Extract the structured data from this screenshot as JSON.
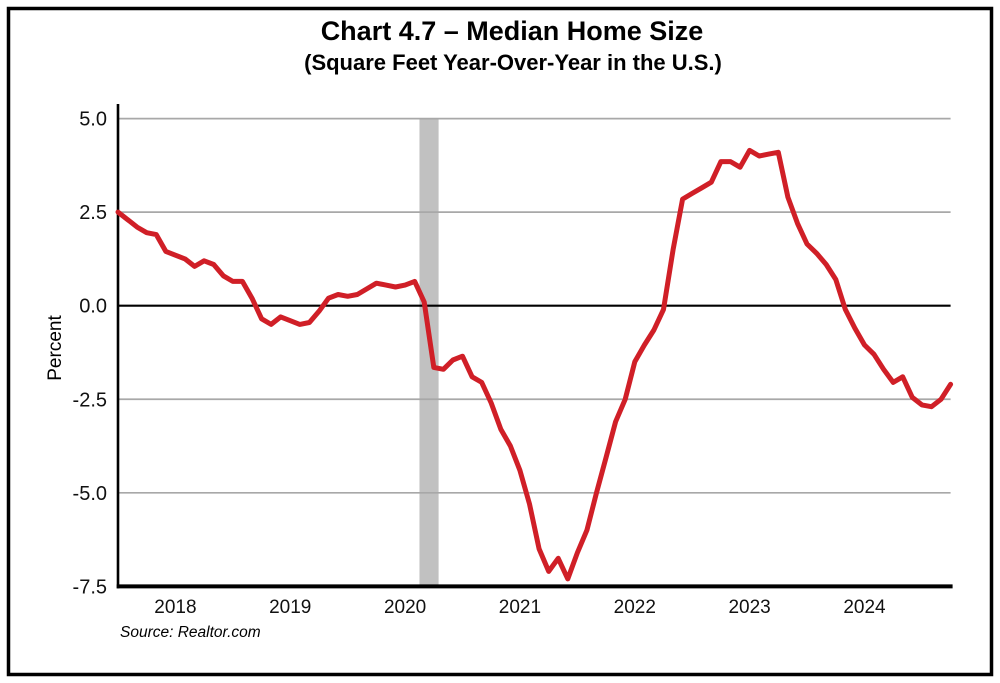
{
  "window": {
    "background_color": "#ffffff",
    "frame_color": "#000000"
  },
  "header": {
    "title": "Chart 4.7 – Median Home Size",
    "subtitle": "(Square Feet Year-Over-Year in the U.S.)"
  },
  "footer": {
    "source": "Source: Realtor.com"
  },
  "chart_data": {
    "type": "line",
    "title": "Chart 4.7 – Median Home Size",
    "subtitle": "(Square Feet Year-Over-Year in the U.S.)",
    "xlabel": "",
    "ylabel": "Percent",
    "source": "Source: Realtor.com",
    "frequency": "monthly",
    "start_month": "2017-07",
    "end_month": "2024-10",
    "ylim": [
      -7.5,
      5.0
    ],
    "y_ticks": [
      5.0,
      2.5,
      0.0,
      -2.5,
      -5.0,
      -7.5
    ],
    "y_tick_labels": [
      "5.0",
      "2.5",
      "0.0",
      "-2.5",
      "-5.0",
      "-7.5"
    ],
    "x_tick_labels": [
      "2018",
      "2019",
      "2020",
      "2021",
      "2022",
      "2023",
      "2024"
    ],
    "x_tick_alignment": "january-of-year",
    "grid": true,
    "legend": "none",
    "line_color": "#d01f27",
    "grid_color": "#a8a8a8",
    "zero_line_color": "#000000",
    "recession_band": {
      "from_month": "2020-02",
      "to_month": "2020-04",
      "color": "#c1c1c1"
    },
    "series": [
      {
        "name": "Median home size, square feet, year-over-year % change",
        "values": [
          2.5,
          2.3,
          2.1,
          1.95,
          1.9,
          1.45,
          1.35,
          1.25,
          1.05,
          1.2,
          1.1,
          0.8,
          0.65,
          0.65,
          0.2,
          -0.35,
          -0.5,
          -0.3,
          -0.4,
          -0.5,
          -0.45,
          -0.15,
          0.2,
          0.3,
          0.25,
          0.3,
          0.45,
          0.6,
          0.55,
          0.5,
          0.55,
          0.65,
          0.1,
          -1.65,
          -1.7,
          -1.45,
          -1.35,
          -1.9,
          -2.05,
          -2.6,
          -3.3,
          -3.75,
          -4.4,
          -5.3,
          -6.5,
          -7.1,
          -6.75,
          -7.3,
          -6.6,
          -6.0,
          -5.0,
          -4.05,
          -3.1,
          -2.5,
          -1.5,
          -1.05,
          -0.65,
          -0.1,
          1.5,
          2.85,
          3.0,
          3.15,
          3.3,
          3.85,
          3.85,
          3.7,
          4.15,
          4.0,
          4.05,
          4.1,
          2.9,
          2.2,
          1.65,
          1.4,
          1.1,
          0.7,
          -0.1,
          -0.6,
          -1.05,
          -1.3,
          -1.7,
          -2.05,
          -1.9,
          -2.45,
          -2.65,
          -2.7,
          -2.5,
          -2.1
        ]
      }
    ]
  }
}
